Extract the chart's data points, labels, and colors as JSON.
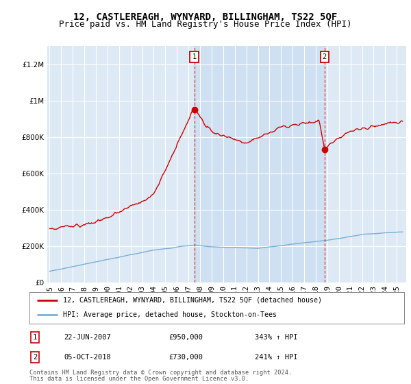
{
  "title": "12, CASTLEREAGH, WYNYARD, BILLINGHAM, TS22 5QF",
  "subtitle": "Price paid vs. HM Land Registry's House Price Index (HPI)",
  "background_color": "#ffffff",
  "plot_bg_color": "#ddeaf5",
  "shaded_region_color": "#c8ddf0",
  "grid_color": "#ffffff",
  "red_line_color": "#cc0000",
  "blue_line_color": "#7aaed6",
  "marker1_year": 2007.47,
  "marker1_value": 950000,
  "marker1_label": "1",
  "marker1_date_str": "22-JUN-2007",
  "marker1_price_str": "£950,000",
  "marker1_hpi_str": "343% ↑ HPI",
  "marker2_year": 2018.76,
  "marker2_value": 730000,
  "marker2_label": "2",
  "marker2_date_str": "05-OCT-2018",
  "marker2_price_str": "£730,000",
  "marker2_hpi_str": "241% ↑ HPI",
  "ylim": [
    0,
    1300000
  ],
  "xlim_start": 1994.8,
  "xlim_end": 2025.8,
  "legend_line1": "12, CASTLEREAGH, WYNYARD, BILLINGHAM, TS22 5QF (detached house)",
  "legend_line2": "HPI: Average price, detached house, Stockton-on-Tees",
  "footer_line1": "Contains HM Land Registry data © Crown copyright and database right 2024.",
  "footer_line2": "This data is licensed under the Open Government Licence v3.0.",
  "title_fontsize": 10,
  "subtitle_fontsize": 9,
  "tick_fontsize": 7.5
}
